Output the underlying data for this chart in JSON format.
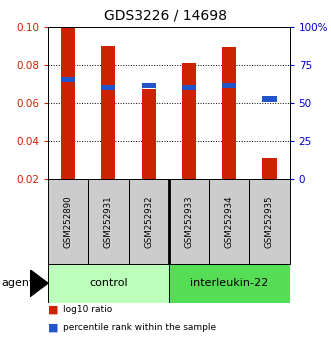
{
  "title": "GDS3226 / 14698",
  "samples": [
    "GSM252890",
    "GSM252931",
    "GSM252932",
    "GSM252933",
    "GSM252934",
    "GSM252935"
  ],
  "log10_ratio": [
    0.1,
    0.09,
    0.067,
    0.081,
    0.089,
    0.031
  ],
  "percentile_rank_left": [
    0.072,
    0.068,
    0.069,
    0.068,
    0.069,
    0.062
  ],
  "group_boundary": 3,
  "ylim_left": [
    0.02,
    0.1
  ],
  "ylim_right": [
    0,
    100
  ],
  "yticks_left": [
    0.02,
    0.04,
    0.06,
    0.08,
    0.1
  ],
  "yticks_right": [
    0,
    25,
    50,
    75,
    100
  ],
  "yticklabels_right": [
    "0",
    "25",
    "50",
    "75",
    "100%"
  ],
  "bar_color": "#cc2200",
  "blue_color": "#2255cc",
  "bar_width": 0.35,
  "legend_red": "log10 ratio",
  "legend_blue": "percentile rank within the sample",
  "tick_color_left": "#cc2200",
  "tick_color_right": "#0000cc",
  "control_color": "#bbffbb",
  "interleukin_color": "#55dd55",
  "gray_box_color": "#cccccc"
}
